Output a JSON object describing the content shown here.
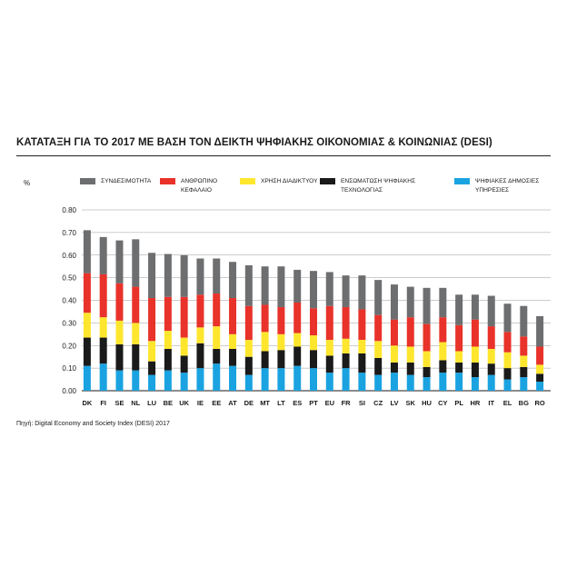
{
  "title": "ΚΑΤΑΤΑΞΗ ΓΙΑ ΤΟ 2017 ΜΕ ΒΑΣΗ ΤΟΝ ΔΕΙΚΤΗ ΨΗΦΙΑΚΗΣ ΟΙΚΟΝΟΜΙΑΣ & ΚΟΙΝΩΝΙΑΣ (DESI)",
  "source": "Πηγή: Digital Economy and Society Index (DESI) 2017",
  "chart_data": {
    "type": "bar",
    "stacked": true,
    "ylabel": "%",
    "ylim": [
      0,
      0.8
    ],
    "yticks": [
      "0.00",
      "0.10",
      "0.20",
      "0.30",
      "0.40",
      "0.50",
      "0.60",
      "0.70",
      "0.80"
    ],
    "grid": true,
    "legend_position": "top",
    "categories": [
      "DK",
      "FI",
      "SE",
      "NL",
      "LU",
      "BE",
      "UK",
      "IE",
      "EE",
      "AT",
      "DE",
      "MT",
      "LT",
      "ES",
      "PT",
      "EU",
      "FR",
      "SI",
      "CZ",
      "LV",
      "SK",
      "HU",
      "CY",
      "PL",
      "HR",
      "IT",
      "EL",
      "BG",
      "RO"
    ],
    "series": [
      {
        "name": "ΨΗΦΙΑΚΕΣ ΔΗΜΟΣΙΕΣ ΥΠΗΡΕΣΙΕΣ",
        "color": "#1aa3e0",
        "values": [
          0.11,
          0.12,
          0.09,
          0.09,
          0.07,
          0.09,
          0.08,
          0.1,
          0.12,
          0.11,
          0.07,
          0.1,
          0.1,
          0.11,
          0.1,
          0.08,
          0.1,
          0.08,
          0.07,
          0.08,
          0.07,
          0.06,
          0.08,
          0.08,
          0.06,
          0.07,
          0.05,
          0.06,
          0.04
        ]
      },
      {
        "name": "ΕΝΣΩΜΑΤΩΣΗ ΨΗΦΙΑΚΗΣ ΤΕΧΝΟΛΟΓΙΑΣ",
        "color": "#1a1a1a",
        "values": [
          0.125,
          0.115,
          0.115,
          0.115,
          0.06,
          0.095,
          0.075,
          0.11,
          0.065,
          0.075,
          0.08,
          0.075,
          0.08,
          0.085,
          0.08,
          0.075,
          0.065,
          0.085,
          0.075,
          0.045,
          0.055,
          0.045,
          0.055,
          0.045,
          0.065,
          0.05,
          0.05,
          0.045,
          0.035
        ]
      },
      {
        "name": "ΧΡΗΣΗ ΔΙΑΔΙΚΤΥΟΥ",
        "color": "#ffe62e",
        "values": [
          0.11,
          0.09,
          0.105,
          0.095,
          0.09,
          0.08,
          0.08,
          0.07,
          0.1,
          0.065,
          0.075,
          0.085,
          0.07,
          0.06,
          0.065,
          0.07,
          0.065,
          0.06,
          0.075,
          0.075,
          0.07,
          0.07,
          0.08,
          0.05,
          0.07,
          0.065,
          0.07,
          0.05,
          0.04
        ]
      },
      {
        "name": "ΑΝΘΡΩΠΙΝΟ ΚΕΦΑΛΑΙΟ",
        "color": "#e8322a",
        "values": [
          0.175,
          0.19,
          0.165,
          0.16,
          0.19,
          0.15,
          0.18,
          0.145,
          0.145,
          0.16,
          0.15,
          0.12,
          0.12,
          0.135,
          0.12,
          0.15,
          0.14,
          0.135,
          0.115,
          0.115,
          0.13,
          0.12,
          0.11,
          0.115,
          0.12,
          0.1,
          0.09,
          0.085,
          0.08
        ]
      },
      {
        "name": "ΣΥΝΔΕΣΙΜΟΤΗΤΑ",
        "color": "#6d6e70",
        "values": [
          0.19,
          0.165,
          0.19,
          0.21,
          0.2,
          0.19,
          0.185,
          0.16,
          0.155,
          0.16,
          0.18,
          0.17,
          0.18,
          0.145,
          0.165,
          0.15,
          0.14,
          0.15,
          0.155,
          0.155,
          0.135,
          0.16,
          0.13,
          0.135,
          0.11,
          0.135,
          0.125,
          0.135,
          0.135
        ]
      }
    ]
  },
  "legend": [
    {
      "label": "ΣΥΝΔΕΣΙΜΟΤΗΤΑ",
      "color": "#6d6e70"
    },
    {
      "label": "ΑΝΘΡΩΠΙΝΟ ΚΕΦΑΛΑΙΟ",
      "color": "#e8322a"
    },
    {
      "label": "ΧΡΗΣΗ ΔΙΑΔΙΚΤΥΟΥ",
      "color": "#ffe62e"
    },
    {
      "label": "ΕΝΣΩΜΑΤΩΣΗ ΨΗΦΙΑΚΗΣ ΤΕΧΝΟΛΟΓΙΑΣ",
      "color": "#1a1a1a"
    },
    {
      "label": "ΨΗΦΙΑΚΕΣ ΔΗΜΟΣΙΕΣ ΥΠΗΡΕΣΙΕΣ",
      "color": "#1aa3e0"
    }
  ]
}
